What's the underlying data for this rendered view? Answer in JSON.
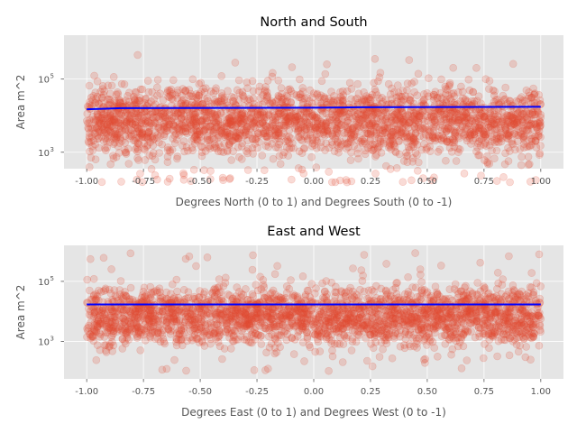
{
  "chart_data": [
    {
      "type": "scatter",
      "title": "North and South",
      "xlabel": "Degrees North (0 to 1) and Degrees South (0 to -1)",
      "ylabel": "Area m^2",
      "xlim": [
        -1.1,
        1.1
      ],
      "ylim_log10": [
        2.55,
        6.2
      ],
      "yscale": "log",
      "grid": true,
      "style": "ggplot",
      "x_ticks": [
        "-1.00",
        "-0.75",
        "-0.50",
        "-0.25",
        "0.00",
        "0.25",
        "0.50",
        "0.75",
        "1.00"
      ],
      "x_tick_values": [
        -1.0,
        -0.75,
        -0.5,
        -0.25,
        0.0,
        0.25,
        0.5,
        0.75,
        1.0
      ],
      "y_ticks": [
        {
          "base": "10",
          "exp": "3",
          "value": 1000
        },
        {
          "base": "10",
          "exp": "5",
          "value": 100000
        }
      ],
      "scatter_summary": {
        "x_range": [
          -1.0,
          1.0
        ],
        "area_median": 4000,
        "area_dense_band": [
          1000,
          200000
        ],
        "area_min": 150,
        "area_max": 1100000,
        "marker_color": "#E24A33",
        "marker_alpha": 0.2
      },
      "trend_line": {
        "color": "#0000ff",
        "x": [
          -1.0,
          -0.85,
          0.0,
          0.2,
          1.0
        ],
        "y": [
          15000,
          16000,
          16500,
          17000,
          17500
        ]
      }
    },
    {
      "type": "scatter",
      "title": "East and West",
      "xlabel": "Degrees East (0 to 1) and Degrees West (0 to -1)",
      "ylabel": "Area m^2",
      "xlim": [
        -1.1,
        1.1
      ],
      "ylim_log10": [
        1.75,
        6.2
      ],
      "yscale": "log",
      "grid": true,
      "style": "ggplot",
      "x_ticks": [
        "-1.00",
        "-0.75",
        "-0.50",
        "-0.25",
        "0.00",
        "0.25",
        "0.50",
        "0.75",
        "1.00"
      ],
      "x_tick_values": [
        -1.0,
        -0.75,
        -0.5,
        -0.25,
        0.0,
        0.25,
        0.5,
        0.75,
        1.0
      ],
      "y_ticks": [
        {
          "base": "10",
          "exp": "3",
          "value": 1000
        },
        {
          "base": "10",
          "exp": "5",
          "value": 100000
        }
      ],
      "scatter_summary": {
        "x_range": [
          -1.0,
          1.0
        ],
        "area_median": 4000,
        "area_dense_band": [
          700,
          200000
        ],
        "area_min": 100,
        "area_max": 1000000,
        "marker_color": "#E24A33",
        "marker_alpha": 0.2
      },
      "trend_line": {
        "color": "#0000ff",
        "x": [
          -1.0,
          1.0
        ],
        "y": [
          17000,
          17000
        ]
      }
    }
  ]
}
